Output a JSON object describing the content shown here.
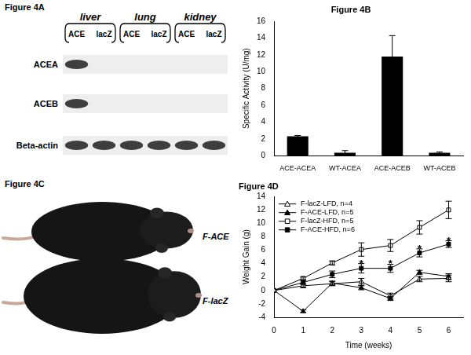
{
  "chart_data": [
    {
      "type": "bar",
      "title": "Figure 4B",
      "categories": [
        "ACE-ACEA",
        "WT-ACEA",
        "ACE-ACEB",
        "WT-ACEB"
      ],
      "values": [
        2.3,
        0.35,
        11.8,
        0.35
      ],
      "errors": [
        0.1,
        0.25,
        2.5,
        0.1
      ],
      "color": "#000000",
      "y_label": "Specific Activity (U/mg)",
      "ylim": [
        0,
        16
      ],
      "yticks": [
        0,
        2,
        4,
        6,
        8,
        10,
        12,
        14,
        16
      ],
      "grid": false
    },
    {
      "type": "line",
      "title": "Figure 4D",
      "x": [
        0,
        1,
        2,
        3,
        4,
        5,
        6
      ],
      "x_label": "Time (weeks)",
      "y_label": "Weight Gain (g)",
      "xlim": [
        0,
        6.5
      ],
      "xticks": [
        0,
        1,
        2,
        3,
        4,
        5,
        6
      ],
      "ylim": [
        -4,
        14
      ],
      "yticks": [
        -4,
        -2,
        0,
        2,
        4,
        6,
        8,
        10,
        12,
        14
      ],
      "grid": false,
      "legend": "upper left",
      "series": [
        {
          "name": "F-lacZ-LFD, n=4",
          "color": "#000000",
          "marker": "triangle-open",
          "values": [
            0,
            0.7,
            1.0,
            1.3,
            -0.8,
            1.7,
            1.8
          ],
          "errors": [
            0,
            0.3,
            0.3,
            0.5,
            0.4,
            0.4,
            0.5
          ]
        },
        {
          "name": "F-ACE-LFD, n=5",
          "color": "#000000",
          "marker": "triangle",
          "values": [
            0,
            -3.1,
            1.1,
            0.4,
            -1.2,
            2.7,
            2.1
          ],
          "errors": [
            0,
            0.2,
            0.3,
            0.3,
            0.3,
            0.3,
            0.4
          ]
        },
        {
          "name": "F-lacZ-HFD, n=5",
          "color": "#000000",
          "marker": "square-open",
          "values": [
            0,
            1.8,
            4.1,
            6.1,
            6.7,
            9.4,
            12.0
          ],
          "errors": [
            0,
            0.2,
            0.3,
            1.0,
            0.9,
            1.0,
            1.3
          ]
        },
        {
          "name": "F-ACE-HFD, n=6",
          "color": "#000000",
          "marker": "square",
          "values": [
            0,
            1.2,
            2.4,
            3.3,
            3.3,
            5.6,
            6.9
          ],
          "errors": [
            0,
            0.3,
            0.5,
            0.7,
            0.6,
            0.6,
            0.5
          ]
        }
      ],
      "annotations": [
        {
          "text": "*",
          "x": 3,
          "y": 4.4
        },
        {
          "text": "*",
          "x": 4,
          "y": 4.4
        },
        {
          "text": "*",
          "x": 5,
          "y": 6.6
        },
        {
          "text": "*",
          "x": 6,
          "y": 7.8
        }
      ]
    }
  ],
  "figure_4a": {
    "title": "Figure 4A",
    "tissues": [
      "liver",
      "lung",
      "kidney"
    ],
    "lanes": [
      "ACE",
      "lacZ"
    ],
    "rows": [
      {
        "label": "ACEA",
        "bands": [
          true,
          false,
          false,
          false,
          false,
          false
        ]
      },
      {
        "label": "ACEB",
        "bands": [
          true,
          false,
          false,
          false,
          false,
          false
        ]
      },
      {
        "label": "Beta-actin",
        "bands": [
          true,
          true,
          true,
          true,
          true,
          true
        ]
      }
    ]
  },
  "figure_4c": {
    "title": "Figure 4C",
    "labels": [
      "F-ACE",
      "F-lacZ"
    ]
  }
}
